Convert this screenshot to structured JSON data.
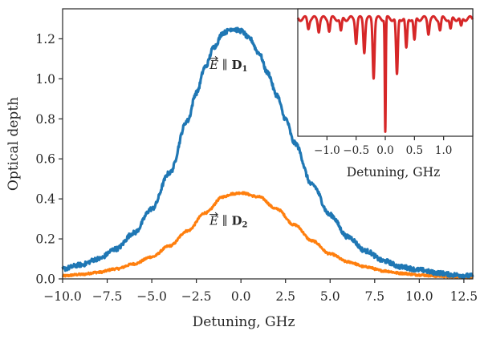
{
  "chart_data": [
    {
      "type": "line",
      "title": "",
      "xlabel": "Detuning, GHz",
      "ylabel": "Optical depth",
      "xlim": [
        -10.0,
        13.0
      ],
      "ylim": [
        0.0,
        1.35
      ],
      "x_ticks": [
        -10.0,
        -7.5,
        -5.0,
        -2.5,
        0.0,
        2.5,
        5.0,
        7.5,
        10.0,
        12.5
      ],
      "x_tick_labels": [
        "−10.0",
        "−7.5",
        "−5.0",
        "−2.5",
        "0.0",
        "2.5",
        "5.0",
        "7.5",
        "10.0",
        "12.5"
      ],
      "y_ticks": [
        0.0,
        0.2,
        0.4,
        0.6,
        0.8,
        1.0,
        1.2
      ],
      "y_tick_labels": [
        "0.0",
        "0.2",
        "0.4",
        "0.6",
        "0.8",
        "1.0",
        "1.2"
      ],
      "grid": false,
      "series": [
        {
          "color": "#1f77b4",
          "annotation": "E ∥ D₁",
          "x": [
            -10,
            -9,
            -8,
            -7,
            -6,
            -5,
            -4,
            -3,
            -2.5,
            -2,
            -1.5,
            -1,
            -0.5,
            0,
            0.5,
            1,
            1.5,
            2,
            2.5,
            3,
            4,
            5,
            6,
            7,
            8,
            9,
            10,
            11,
            12,
            13
          ],
          "y": [
            0.05,
            0.07,
            0.1,
            0.15,
            0.23,
            0.35,
            0.53,
            0.79,
            0.93,
            1.06,
            1.16,
            1.23,
            1.25,
            1.24,
            1.2,
            1.13,
            1.03,
            0.92,
            0.8,
            0.68,
            0.47,
            0.32,
            0.21,
            0.14,
            0.09,
            0.06,
            0.045,
            0.03,
            0.02,
            0.015
          ]
        },
        {
          "color": "#ff7f0e",
          "annotation": "E ∥ D₂",
          "x": [
            -10,
            -9,
            -8,
            -7,
            -6,
            -5,
            -4,
            -3,
            -2,
            -1,
            -0.5,
            0,
            1,
            2,
            3,
            4,
            5,
            6,
            7,
            8,
            9,
            10,
            11,
            12,
            13
          ],
          "y": [
            0.015,
            0.022,
            0.033,
            0.05,
            0.075,
            0.11,
            0.165,
            0.24,
            0.33,
            0.41,
            0.425,
            0.43,
            0.41,
            0.35,
            0.27,
            0.19,
            0.125,
            0.085,
            0.06,
            0.04,
            0.028,
            0.02,
            0.014,
            0.01,
            0.007
          ]
        }
      ],
      "annotations": [
        {
          "prefix": "E",
          "sep": " ∥ ",
          "bold": "D",
          "sub": "1",
          "x": -0.5,
          "y": 1.05
        },
        {
          "prefix": "E",
          "sep": " ∥ ",
          "bold": "D",
          "sub": "2",
          "x": -0.5,
          "y": 0.27
        }
      ]
    },
    {
      "type": "line",
      "title": "",
      "xlabel": "Detuning, GHz",
      "ylabel": "",
      "xlim": [
        -1.5,
        1.5
      ],
      "x_ticks": [
        -1.0,
        -0.5,
        0.0,
        0.5,
        1.0
      ],
      "x_tick_labels": [
        "−1.0",
        "−0.5",
        "0.0",
        "0.5",
        "1.0"
      ],
      "y_ticks": [],
      "series": [
        {
          "color": "#d62728",
          "baseline": 0.95,
          "dips": [
            {
              "x": -1.32,
              "depth": 0.08
            },
            {
              "x": -1.14,
              "depth": 0.1
            },
            {
              "x": -0.96,
              "depth": 0.1
            },
            {
              "x": -0.76,
              "depth": 0.12
            },
            {
              "x": -0.5,
              "depth": 0.2
            },
            {
              "x": -0.36,
              "depth": 0.28
            },
            {
              "x": -0.2,
              "depth": 0.5
            },
            {
              "x": 0.0,
              "depth": 0.98
            },
            {
              "x": 0.2,
              "depth": 0.5
            },
            {
              "x": 0.36,
              "depth": 0.27
            },
            {
              "x": 0.5,
              "depth": 0.2
            },
            {
              "x": 0.74,
              "depth": 0.12
            },
            {
              "x": 0.94,
              "depth": 0.1
            },
            {
              "x": 1.12,
              "depth": 0.1
            },
            {
              "x": 1.3,
              "depth": 0.08
            }
          ]
        }
      ]
    }
  ]
}
